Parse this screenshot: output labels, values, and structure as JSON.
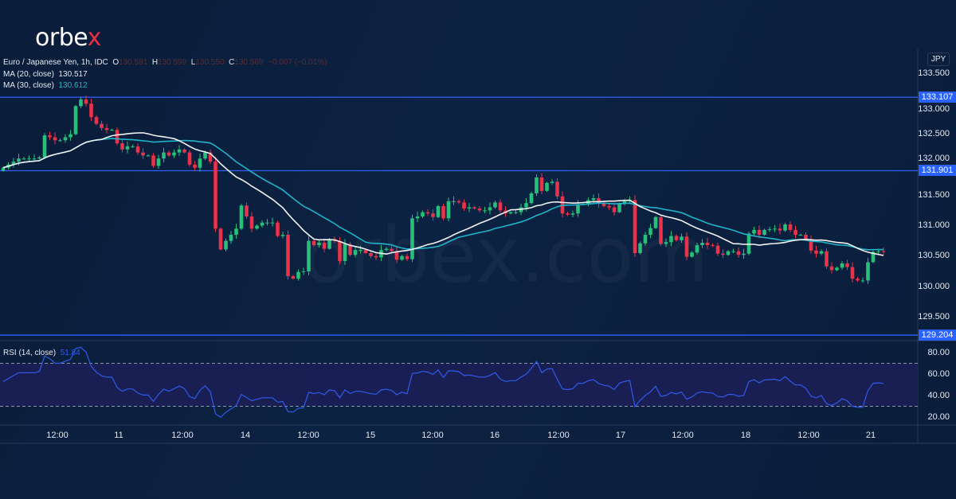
{
  "brand": {
    "logo_main": "orbe",
    "logo_x": "x",
    "watermark": "orbex.com"
  },
  "legend": {
    "symbol": "Euro / Japanese Yen, 1h, IDC",
    "o_label": "O",
    "o": "130.581",
    "h_label": "H",
    "h": "130.599",
    "l_label": "L",
    "l": "130.550",
    "c_label": "C",
    "c": "130.569",
    "change": "−0.007 (−0.01%)",
    "ma20_label": "MA (20, close)",
    "ma20": "130.517",
    "ma30_label": "MA (30, close)",
    "ma30": "130.612",
    "rsi_label": "RSI (14, close)",
    "rsi": "51.84"
  },
  "price_axis": {
    "currency": "JPY",
    "ticks": [
      "133.500",
      "133.000",
      "132.500",
      "132.000",
      "131.500",
      "131.000",
      "130.500",
      "130.000",
      "129.500"
    ],
    "levels": [
      "133.107",
      "131.901",
      "129.204"
    ]
  },
  "rsi_axis": {
    "ticks": [
      "80.00",
      "60.00",
      "40.00",
      "20.00"
    ]
  },
  "time_axis": {
    "labels": [
      "12:00",
      "11",
      "12:00",
      "14",
      "12:00",
      "15",
      "12:00",
      "16",
      "12:00",
      "17",
      "12:00",
      "18",
      "12:00",
      "21"
    ]
  },
  "colors": {
    "up": "#26c07a",
    "down": "#e8334a",
    "ma20": "#f2f2f2",
    "ma30": "#1fb3c9",
    "level": "#2962ff",
    "rsi": "#2f5bea",
    "rsi_band": "#1c1f57"
  },
  "chart_data": {
    "type": "candlestick",
    "interval": "1h",
    "first_open": 131.9,
    "closes": [
      131.95,
      132.0,
      132.05,
      132.1,
      132.1,
      132.1,
      132.1,
      132.12,
      132.48,
      132.45,
      132.4,
      132.4,
      132.45,
      132.5,
      132.96,
      133.07,
      133.0,
      132.78,
      132.67,
      132.6,
      132.57,
      132.57,
      132.35,
      132.25,
      132.3,
      132.3,
      132.2,
      132.15,
      132.15,
      131.98,
      132.1,
      132.2,
      132.15,
      132.2,
      132.25,
      132.2,
      132.0,
      131.95,
      132.1,
      132.2,
      132.05,
      130.95,
      130.61,
      130.75,
      130.85,
      130.95,
      131.33,
      131.15,
      130.95,
      131.0,
      131.05,
      131.05,
      131.05,
      130.83,
      130.85,
      130.17,
      130.13,
      130.24,
      130.25,
      130.75,
      130.68,
      130.72,
      130.62,
      130.78,
      130.75,
      130.42,
      130.7,
      130.52,
      130.6,
      130.6,
      130.55,
      130.5,
      130.48,
      130.6,
      130.62,
      130.58,
      130.44,
      130.5,
      130.45,
      131.12,
      131.15,
      131.22,
      131.2,
      131.14,
      131.32,
      131.12,
      131.4,
      131.4,
      131.38,
      131.28,
      131.3,
      131.28,
      131.25,
      131.25,
      131.3,
      131.38,
      131.25,
      131.2,
      131.22,
      131.22,
      131.3,
      131.37,
      131.53,
      131.79,
      131.57,
      131.7,
      131.72,
      131.48,
      131.2,
      131.18,
      131.2,
      131.35,
      131.35,
      131.42,
      131.45,
      131.36,
      131.32,
      131.3,
      131.22,
      131.36,
      131.4,
      131.42,
      130.55,
      130.71,
      130.85,
      130.96,
      131.14,
      130.7,
      130.73,
      130.83,
      130.76,
      130.82,
      130.49,
      130.56,
      130.68,
      130.72,
      130.68,
      130.67,
      130.54,
      130.52,
      130.58,
      130.58,
      130.52,
      130.54,
      130.87,
      130.93,
      130.85,
      130.93,
      130.94,
      130.95,
      130.92,
      131.02,
      130.93,
      130.85,
      130.85,
      130.78,
      130.59,
      130.54,
      130.58,
      130.33,
      130.27,
      130.31,
      130.38,
      130.32,
      130.13,
      130.1,
      130.1,
      130.4,
      130.57,
      130.58,
      130.569
    ],
    "levels": [
      133.107,
      131.901,
      129.204
    ],
    "ylim": [
      129.1,
      133.7
    ],
    "rsi_ylim": [
      10,
      90
    ],
    "rsi_bands": [
      30,
      70
    ]
  }
}
